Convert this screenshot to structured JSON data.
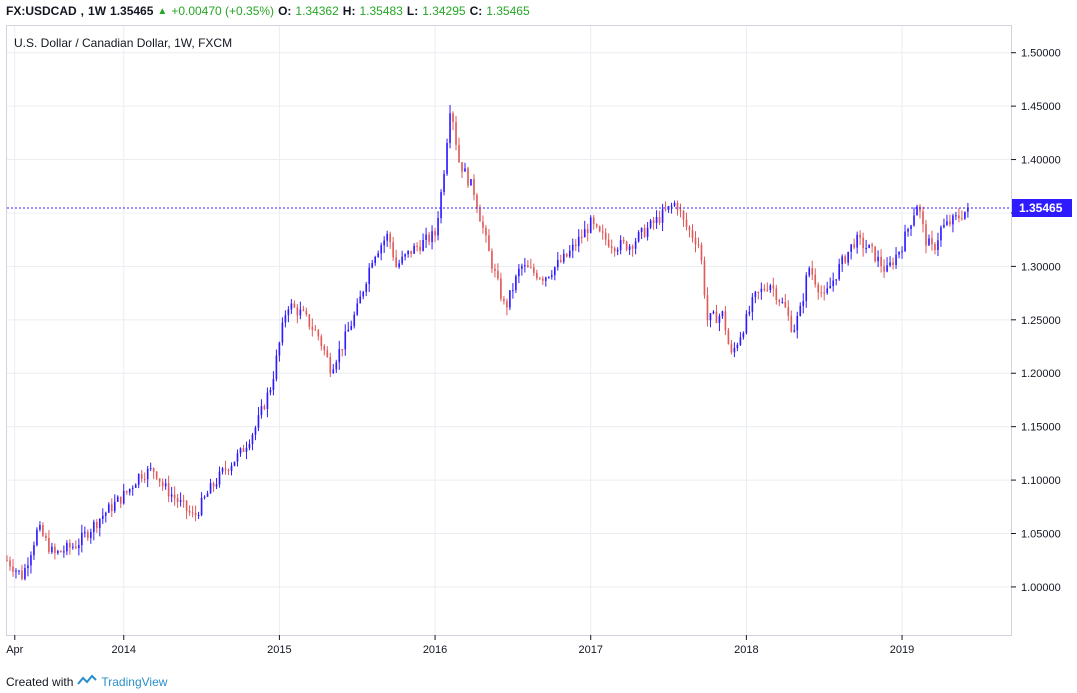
{
  "header": {
    "symbol": "FX:USDCAD",
    "interval": "1W",
    "last": "1.35465",
    "change": "+0.00470 (+0.35%)",
    "o_label": "O:",
    "o": "1.34362",
    "h_label": "H:",
    "h": "1.35483",
    "l_label": "L:",
    "l": "1.34295",
    "c_label": "C:",
    "c": "1.35465"
  },
  "footer": {
    "created_with": "Created with",
    "brand": "TradingView"
  },
  "colors": {
    "up": "#2f1bff",
    "down": "#e05a5a",
    "grid": "#eaedf1",
    "axis": "#131722",
    "badge": "#2f1bff"
  },
  "chart_data": {
    "type": "candlestick",
    "title": "U.S. Dollar / Canadian Dollar, 1W, FXCM",
    "xlabel": "",
    "ylabel": "",
    "ylim": [
      0.955,
      1.525
    ],
    "y_ticks": [
      "1.00000",
      "1.05000",
      "1.10000",
      "1.15000",
      "1.20000",
      "1.25000",
      "1.30000",
      "1.35000",
      "1.40000",
      "1.45000",
      "1.50000"
    ],
    "x_ticks": [
      {
        "label": "Apr",
        "t": 0.05
      },
      {
        "label": "2014",
        "t": 0.75
      },
      {
        "label": "2015",
        "t": 1.75
      },
      {
        "label": "2016",
        "t": 2.75
      },
      {
        "label": "2017",
        "t": 3.75
      },
      {
        "label": "2018",
        "t": 4.75
      },
      {
        "label": "2019",
        "t": 5.75
      }
    ],
    "last_price": "1.35465",
    "last_value": 1.35465,
    "anchors": [
      [
        0.0,
        1.025
      ],
      [
        0.1,
        1.01
      ],
      [
        0.2,
        1.055
      ],
      [
        0.3,
        1.03
      ],
      [
        0.45,
        1.04
      ],
      [
        0.6,
        1.065
      ],
      [
        0.78,
        1.09
      ],
      [
        0.85,
        1.105
      ],
      [
        0.95,
        1.11
      ],
      [
        1.0,
        1.095
      ],
      [
        1.1,
        1.08
      ],
      [
        1.2,
        1.065
      ],
      [
        1.3,
        1.09
      ],
      [
        1.4,
        1.11
      ],
      [
        1.5,
        1.125
      ],
      [
        1.6,
        1.15
      ],
      [
        1.7,
        1.19
      ],
      [
        1.78,
        1.25
      ],
      [
        1.8,
        1.265
      ],
      [
        1.9,
        1.255
      ],
      [
        2.0,
        1.235
      ],
      [
        2.08,
        1.205
      ],
      [
        2.15,
        1.225
      ],
      [
        2.25,
        1.26
      ],
      [
        2.35,
        1.31
      ],
      [
        2.45,
        1.33
      ],
      [
        2.5,
        1.3
      ],
      [
        2.6,
        1.315
      ],
      [
        2.75,
        1.33
      ],
      [
        2.8,
        1.38
      ],
      [
        2.85,
        1.455
      ],
      [
        2.9,
        1.4
      ],
      [
        3.0,
        1.37
      ],
      [
        3.1,
        1.31
      ],
      [
        3.2,
        1.26
      ],
      [
        3.3,
        1.3
      ],
      [
        3.45,
        1.29
      ],
      [
        3.6,
        1.31
      ],
      [
        3.75,
        1.34
      ],
      [
        3.8,
        1.33
      ],
      [
        3.9,
        1.32
      ],
      [
        4.0,
        1.32
      ],
      [
        4.15,
        1.34
      ],
      [
        4.3,
        1.36
      ],
      [
        4.35,
        1.34
      ],
      [
        4.45,
        1.32
      ],
      [
        4.5,
        1.25
      ],
      [
        4.6,
        1.255
      ],
      [
        4.65,
        1.215
      ],
      [
        4.75,
        1.25
      ],
      [
        4.8,
        1.27
      ],
      [
        4.9,
        1.285
      ],
      [
        5.0,
        1.26
      ],
      [
        5.05,
        1.24
      ],
      [
        5.1,
        1.26
      ],
      [
        5.15,
        1.3
      ],
      [
        5.25,
        1.27
      ],
      [
        5.35,
        1.3
      ],
      [
        5.45,
        1.325
      ],
      [
        5.55,
        1.315
      ],
      [
        5.65,
        1.295
      ],
      [
        5.75,
        1.32
      ],
      [
        5.8,
        1.34
      ],
      [
        5.85,
        1.36
      ],
      [
        5.9,
        1.325
      ],
      [
        5.95,
        1.315
      ],
      [
        6.0,
        1.335
      ],
      [
        6.1,
        1.345
      ],
      [
        6.18,
        1.3546
      ]
    ]
  }
}
